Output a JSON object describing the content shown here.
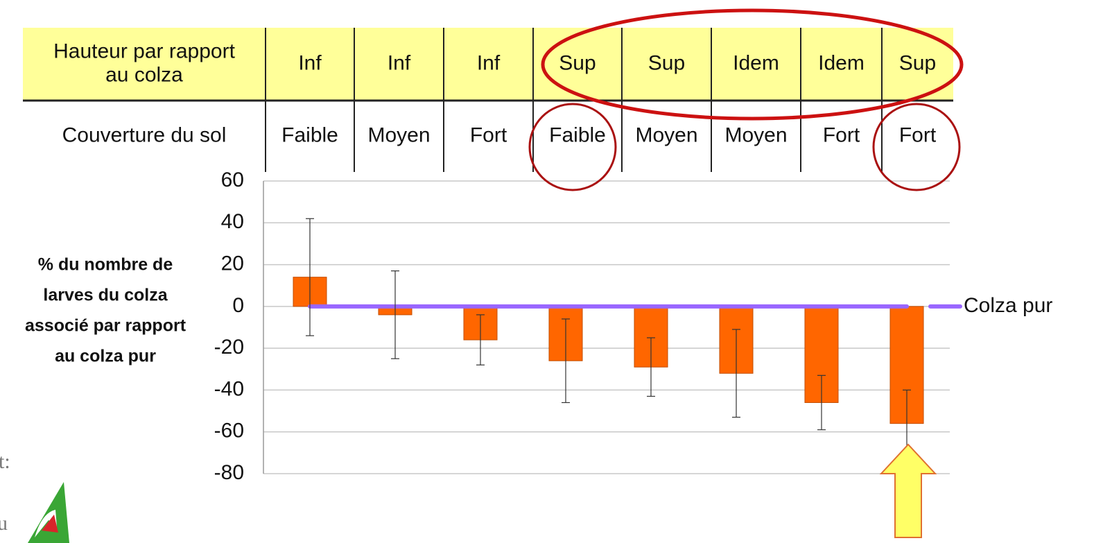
{
  "table": {
    "rows": [
      [
        [
          "Hauteur par rapport",
          "au colza"
        ],
        "Inf",
        "Inf",
        "Inf",
        "Sup",
        "Sup",
        "Idem",
        "Idem",
        "Sup"
      ],
      [
        "Couverture du sol",
        "Faible",
        "Moyen",
        "Fort",
        "Faible",
        "Moyen",
        "Moyen",
        "Fort",
        "Fort"
      ]
    ]
  },
  "chart_data": {
    "type": "bar",
    "ylabel_lines": [
      "% du nombre de",
      "larves du colza",
      "associé par rapport",
      "au colza pur"
    ],
    "values": [
      14,
      -4,
      -16,
      -26,
      -29,
      -32,
      -46,
      -56
    ],
    "errors": [
      28,
      21,
      12,
      20,
      14,
      21,
      13,
      16
    ],
    "color": "#ff6600",
    "ylim": [
      -80,
      60
    ],
    "yticks": [
      -80,
      -60,
      -40,
      -20,
      0,
      20,
      40,
      60
    ],
    "grid": true,
    "reference_line": {
      "value": 0,
      "label": "Colza pur",
      "color": "#9966ff"
    }
  },
  "background_text": [
    "t:",
    "u"
  ]
}
